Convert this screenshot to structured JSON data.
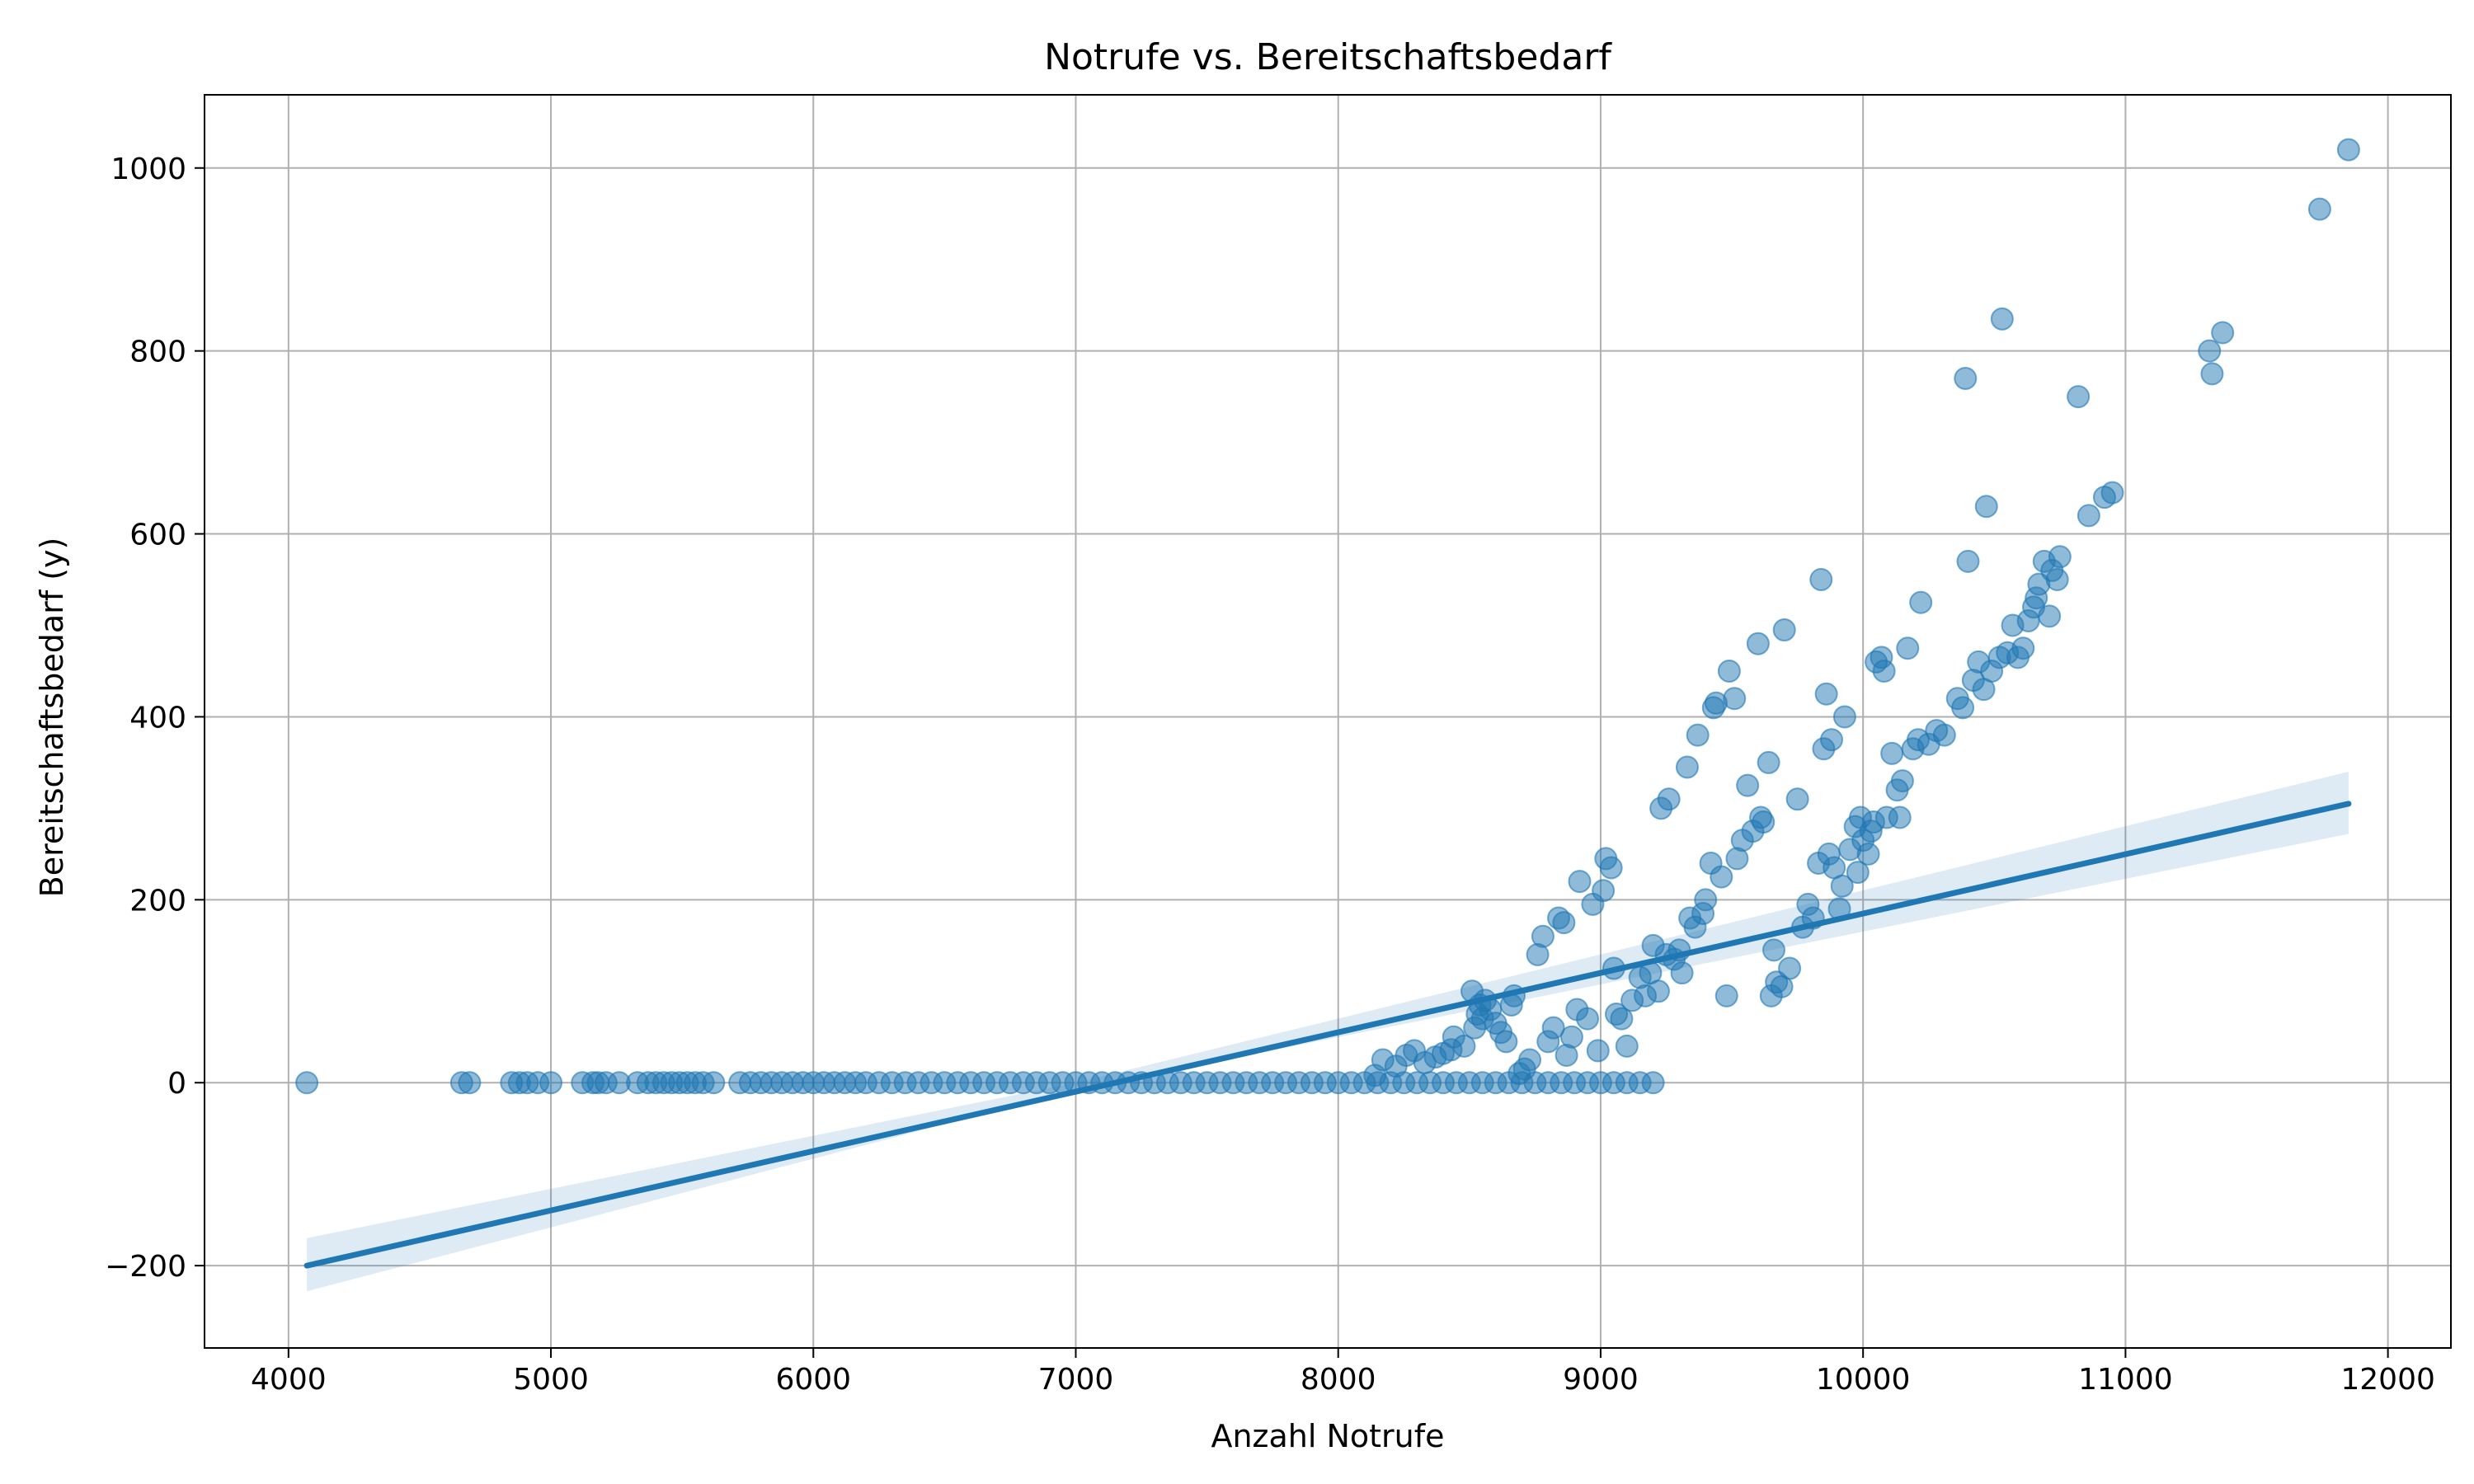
{
  "chart_data": {
    "type": "scatter",
    "title": "Notrufe vs. Bereitschaftsbedarf",
    "xlabel": "Anzahl Notrufe",
    "ylabel": "Bereitschaftsbedarf (y)",
    "xlim": [
      3680,
      12240
    ],
    "ylim": [
      -290,
      1080
    ],
    "xticks": [
      4000,
      5000,
      6000,
      7000,
      8000,
      9000,
      10000,
      11000,
      12000
    ],
    "xtick_labels": [
      "4000",
      "5000",
      "6000",
      "7000",
      "8000",
      "9000",
      "10000",
      "11000",
      "12000"
    ],
    "yticks": [
      -200,
      0,
      200,
      400,
      600,
      800,
      1000
    ],
    "ytick_labels": [
      "−200",
      "0",
      "200",
      "400",
      "600",
      "800",
      "1000"
    ],
    "grid": true,
    "colors": {
      "points": "#1f77b4",
      "line": "#1f77b4",
      "band": "#1f77b4",
      "grid": "#b0b0b0"
    },
    "series": [
      {
        "type": "scatter",
        "points": [
          [
            4070,
            0
          ],
          [
            4660,
            0
          ],
          [
            4690,
            0
          ],
          [
            4850,
            0
          ],
          [
            4880,
            0
          ],
          [
            4910,
            0
          ],
          [
            4950,
            0
          ],
          [
            5000,
            0
          ],
          [
            5120,
            0
          ],
          [
            5160,
            0
          ],
          [
            5180,
            0
          ],
          [
            5210,
            0
          ],
          [
            5260,
            0
          ],
          [
            5330,
            0
          ],
          [
            5370,
            0
          ],
          [
            5400,
            0
          ],
          [
            5430,
            0
          ],
          [
            5460,
            0
          ],
          [
            5490,
            0
          ],
          [
            5520,
            0
          ],
          [
            5550,
            0
          ],
          [
            5580,
            0
          ],
          [
            5620,
            0
          ],
          [
            5720,
            0
          ],
          [
            5760,
            0
          ],
          [
            5800,
            0
          ],
          [
            5840,
            0
          ],
          [
            5880,
            0
          ],
          [
            5920,
            0
          ],
          [
            5960,
            0
          ],
          [
            6000,
            0
          ],
          [
            6040,
            0
          ],
          [
            6080,
            0
          ],
          [
            6120,
            0
          ],
          [
            6160,
            0
          ],
          [
            6200,
            0
          ],
          [
            6250,
            0
          ],
          [
            6300,
            0
          ],
          [
            6350,
            0
          ],
          [
            6400,
            0
          ],
          [
            6450,
            0
          ],
          [
            6500,
            0
          ],
          [
            6550,
            0
          ],
          [
            6600,
            0
          ],
          [
            6650,
            0
          ],
          [
            6700,
            0
          ],
          [
            6750,
            0
          ],
          [
            6800,
            0
          ],
          [
            6850,
            0
          ],
          [
            6900,
            0
          ],
          [
            6950,
            0
          ],
          [
            7000,
            0
          ],
          [
            7050,
            0
          ],
          [
            7100,
            0
          ],
          [
            7150,
            0
          ],
          [
            7200,
            0
          ],
          [
            7250,
            0
          ],
          [
            7300,
            0
          ],
          [
            7350,
            0
          ],
          [
            7400,
            0
          ],
          [
            7450,
            0
          ],
          [
            7500,
            0
          ],
          [
            7550,
            0
          ],
          [
            7600,
            0
          ],
          [
            7650,
            0
          ],
          [
            7700,
            0
          ],
          [
            7750,
            0
          ],
          [
            7800,
            0
          ],
          [
            7850,
            0
          ],
          [
            7900,
            0
          ],
          [
            7950,
            0
          ],
          [
            8000,
            0
          ],
          [
            8050,
            0
          ],
          [
            8100,
            0
          ],
          [
            8150,
            0
          ],
          [
            8200,
            0
          ],
          [
            8250,
            0
          ],
          [
            8300,
            0
          ],
          [
            8350,
            0
          ],
          [
            8400,
            0
          ],
          [
            8450,
            0
          ],
          [
            8500,
            0
          ],
          [
            8550,
            0
          ],
          [
            8600,
            0
          ],
          [
            8650,
            0
          ],
          [
            8700,
            0
          ],
          [
            8750,
            0
          ],
          [
            8800,
            0
          ],
          [
            8850,
            0
          ],
          [
            8900,
            0
          ],
          [
            8950,
            0
          ],
          [
            9000,
            0
          ],
          [
            9050,
            0
          ],
          [
            9100,
            0
          ],
          [
            9150,
            0
          ],
          [
            9200,
            0
          ],
          [
            8140,
            8
          ],
          [
            8170,
            25
          ],
          [
            8220,
            18
          ],
          [
            8260,
            30
          ],
          [
            8290,
            35
          ],
          [
            8330,
            22
          ],
          [
            8370,
            28
          ],
          [
            8400,
            32
          ],
          [
            8430,
            36
          ],
          [
            8440,
            50
          ],
          [
            8480,
            40
          ],
          [
            8510,
            100
          ],
          [
            8520,
            60
          ],
          [
            8530,
            75
          ],
          [
            8540,
            85
          ],
          [
            8550,
            70
          ],
          [
            8560,
            90
          ],
          [
            8580,
            80
          ],
          [
            8600,
            65
          ],
          [
            8620,
            55
          ],
          [
            8640,
            45
          ],
          [
            8660,
            85
          ],
          [
            8670,
            95
          ],
          [
            8690,
            10
          ],
          [
            8710,
            15
          ],
          [
            8730,
            25
          ],
          [
            8760,
            140
          ],
          [
            8780,
            160
          ],
          [
            8800,
            45
          ],
          [
            8820,
            60
          ],
          [
            8840,
            180
          ],
          [
            8860,
            175
          ],
          [
            8870,
            30
          ],
          [
            8890,
            50
          ],
          [
            8910,
            80
          ],
          [
            8920,
            220
          ],
          [
            8950,
            70
          ],
          [
            8970,
            195
          ],
          [
            8990,
            35
          ],
          [
            9010,
            210
          ],
          [
            9020,
            245
          ],
          [
            9040,
            235
          ],
          [
            9050,
            125
          ],
          [
            9060,
            75
          ],
          [
            9080,
            70
          ],
          [
            9100,
            40
          ],
          [
            9120,
            90
          ],
          [
            9150,
            115
          ],
          [
            9170,
            95
          ],
          [
            9190,
            120
          ],
          [
            9200,
            150
          ],
          [
            9220,
            100
          ],
          [
            9230,
            300
          ],
          [
            9250,
            140
          ],
          [
            9260,
            310
          ],
          [
            9280,
            135
          ],
          [
            9300,
            145
          ],
          [
            9310,
            120
          ],
          [
            9330,
            345
          ],
          [
            9340,
            180
          ],
          [
            9360,
            170
          ],
          [
            9370,
            380
          ],
          [
            9390,
            185
          ],
          [
            9400,
            200
          ],
          [
            9420,
            240
          ],
          [
            9430,
            410
          ],
          [
            9440,
            415
          ],
          [
            9460,
            225
          ],
          [
            9480,
            95
          ],
          [
            9490,
            450
          ],
          [
            9510,
            420
          ],
          [
            9520,
            245
          ],
          [
            9540,
            265
          ],
          [
            9560,
            325
          ],
          [
            9580,
            275
          ],
          [
            9600,
            480
          ],
          [
            9610,
            290
          ],
          [
            9620,
            285
          ],
          [
            9640,
            350
          ],
          [
            9650,
            95
          ],
          [
            9660,
            145
          ],
          [
            9670,
            110
          ],
          [
            9690,
            105
          ],
          [
            9700,
            495
          ],
          [
            9720,
            125
          ],
          [
            9750,
            310
          ],
          [
            9770,
            170
          ],
          [
            9790,
            195
          ],
          [
            9810,
            180
          ],
          [
            9830,
            240
          ],
          [
            9840,
            550
          ],
          [
            9850,
            365
          ],
          [
            9860,
            425
          ],
          [
            9870,
            250
          ],
          [
            9880,
            375
          ],
          [
            9890,
            235
          ],
          [
            9910,
            190
          ],
          [
            9920,
            215
          ],
          [
            9930,
            400
          ],
          [
            9950,
            255
          ],
          [
            9970,
            280
          ],
          [
            9980,
            230
          ],
          [
            9990,
            290
          ],
          [
            10000,
            265
          ],
          [
            10020,
            250
          ],
          [
            10030,
            275
          ],
          [
            10040,
            285
          ],
          [
            10050,
            460
          ],
          [
            10070,
            465
          ],
          [
            10080,
            450
          ],
          [
            10090,
            290
          ],
          [
            10110,
            360
          ],
          [
            10130,
            320
          ],
          [
            10140,
            290
          ],
          [
            10150,
            330
          ],
          [
            10170,
            475
          ],
          [
            10190,
            365
          ],
          [
            10210,
            375
          ],
          [
            10220,
            525
          ],
          [
            10250,
            370
          ],
          [
            10280,
            385
          ],
          [
            10310,
            380
          ],
          [
            10360,
            420
          ],
          [
            10380,
            410
          ],
          [
            10390,
            770
          ],
          [
            10400,
            570
          ],
          [
            10420,
            440
          ],
          [
            10440,
            460
          ],
          [
            10460,
            430
          ],
          [
            10470,
            630
          ],
          [
            10490,
            450
          ],
          [
            10520,
            465
          ],
          [
            10530,
            835
          ],
          [
            10550,
            470
          ],
          [
            10570,
            500
          ],
          [
            10590,
            465
          ],
          [
            10610,
            475
          ],
          [
            10630,
            505
          ],
          [
            10650,
            520
          ],
          [
            10660,
            530
          ],
          [
            10670,
            545
          ],
          [
            10690,
            570
          ],
          [
            10710,
            510
          ],
          [
            10720,
            560
          ],
          [
            10740,
            550
          ],
          [
            10750,
            575
          ],
          [
            10820,
            750
          ],
          [
            10860,
            620
          ],
          [
            10920,
            640
          ],
          [
            10950,
            645
          ],
          [
            11320,
            800
          ],
          [
            11330,
            775
          ],
          [
            11370,
            820
          ],
          [
            11740,
            955
          ],
          [
            11850,
            1020
          ]
        ]
      },
      {
        "type": "line",
        "x": [
          4070,
          11850
        ],
        "y": [
          -200,
          305
        ]
      },
      {
        "type": "area",
        "x": [
          4070,
          7000,
          11850
        ],
        "upper": [
          -170,
          0,
          340
        ],
        "lower": [
          -228,
          -8,
          272
        ]
      }
    ]
  }
}
